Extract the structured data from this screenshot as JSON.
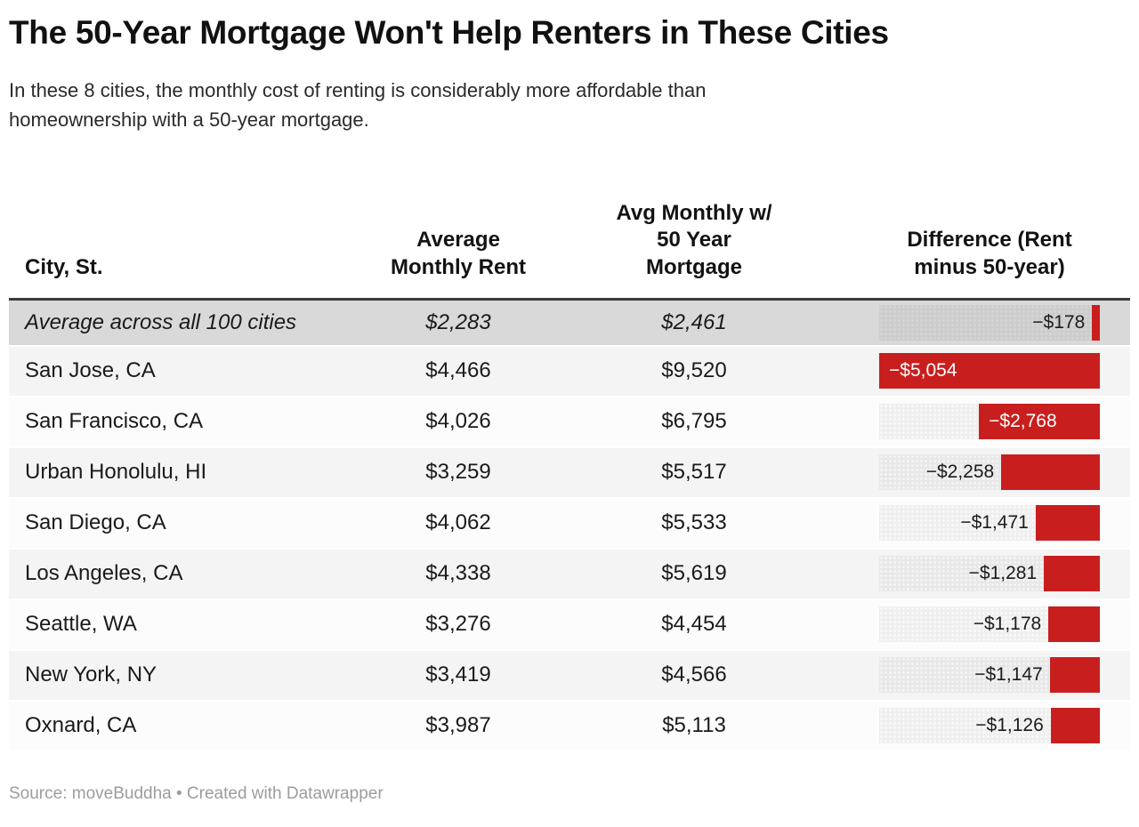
{
  "header": {
    "title": "The 50-Year Mortgage Won't Help Renters in These Cities",
    "subtitle": "In these 8 cities, the monthly cost of renting is considerably more affordable than\nhomeownership with a 50-year mortgage."
  },
  "chart_data": {
    "type": "table",
    "title": "The 50-Year Mortgage Won't Help Renters in These Cities",
    "columns": [
      "City, St.",
      "Average\nMonthly Rent",
      "Avg Monthly w/\n50 Year\nMortgage",
      "Difference (Rent\nminus 50-year)"
    ],
    "bar_column": "Difference (Rent minus 50-year)",
    "bar_color": "#c81f1e",
    "bar_scale_max": 5054,
    "rows": [
      {
        "city": "Average across all 100 cities",
        "rent": "$2,283",
        "mortgage": "$2,461",
        "difference_label": "−$178",
        "difference_value": -178,
        "is_average": true
      },
      {
        "city": "San Jose, CA",
        "rent": "$4,466",
        "mortgage": "$9,520",
        "difference_label": "−$5,054",
        "difference_value": -5054,
        "is_average": false
      },
      {
        "city": "San Francisco, CA",
        "rent": "$4,026",
        "mortgage": "$6,795",
        "difference_label": "−$2,768",
        "difference_value": -2768,
        "is_average": false
      },
      {
        "city": "Urban Honolulu, HI",
        "rent": "$3,259",
        "mortgage": "$5,517",
        "difference_label": "−$2,258",
        "difference_value": -2258,
        "is_average": false
      },
      {
        "city": "San Diego, CA",
        "rent": "$4,062",
        "mortgage": "$5,533",
        "difference_label": "−$1,471",
        "difference_value": -1471,
        "is_average": false
      },
      {
        "city": "Los Angeles, CA",
        "rent": "$4,338",
        "mortgage": "$5,619",
        "difference_label": "−$1,281",
        "difference_value": -1281,
        "is_average": false
      },
      {
        "city": "Seattle, WA",
        "rent": "$3,276",
        "mortgage": "$4,454",
        "difference_label": "−$1,178",
        "difference_value": -1178,
        "is_average": false
      },
      {
        "city": "New York, NY",
        "rent": "$3,419",
        "mortgage": "$4,566",
        "difference_label": "−$1,147",
        "difference_value": -1147,
        "is_average": false
      },
      {
        "city": "Oxnard, CA",
        "rent": "$3,987",
        "mortgage": "$5,113",
        "difference_label": "−$1,126",
        "difference_value": -1126,
        "is_average": false
      }
    ]
  },
  "footer": {
    "source": "Source: moveBuddha • Created with Datawrapper"
  }
}
